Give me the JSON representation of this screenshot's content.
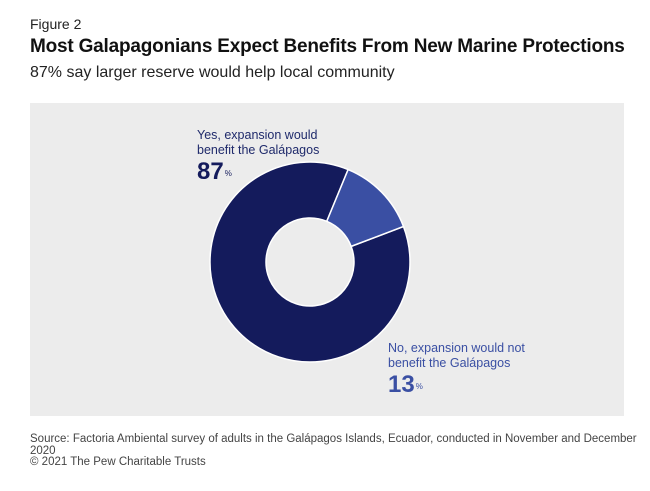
{
  "figure_label": "Figure 2",
  "title": "Most Galapagonians Expect Benefits From New Marine Protections",
  "subtitle": "87% say larger reserve would help local community",
  "chart_data": {
    "type": "pie",
    "donut": true,
    "categories": [
      "Yes, expansion would benefit the Galápagos",
      "No, expansion would not benefit the Galápagos"
    ],
    "values": [
      87,
      13
    ],
    "units": "%",
    "colors": [
      "#141b5c",
      "#3a4fa3"
    ]
  },
  "labels": {
    "yes_line1": "Yes, expansion would",
    "yes_line2": "benefit the Galápagos",
    "yes_value": "87",
    "no_line1": "No, expansion would not",
    "no_line2": "benefit the Galápagos",
    "no_value": "13",
    "percent_sign": "%"
  },
  "source": "Source: Factoria Ambiental survey of adults in the Galápagos Islands, Ecuador, conducted in November and December 2020",
  "copyright": "© 2021 The Pew Charitable Trusts",
  "colors": {
    "panel_bg": "#ececec",
    "yes": "#141b5c",
    "no": "#3a4fa3"
  }
}
